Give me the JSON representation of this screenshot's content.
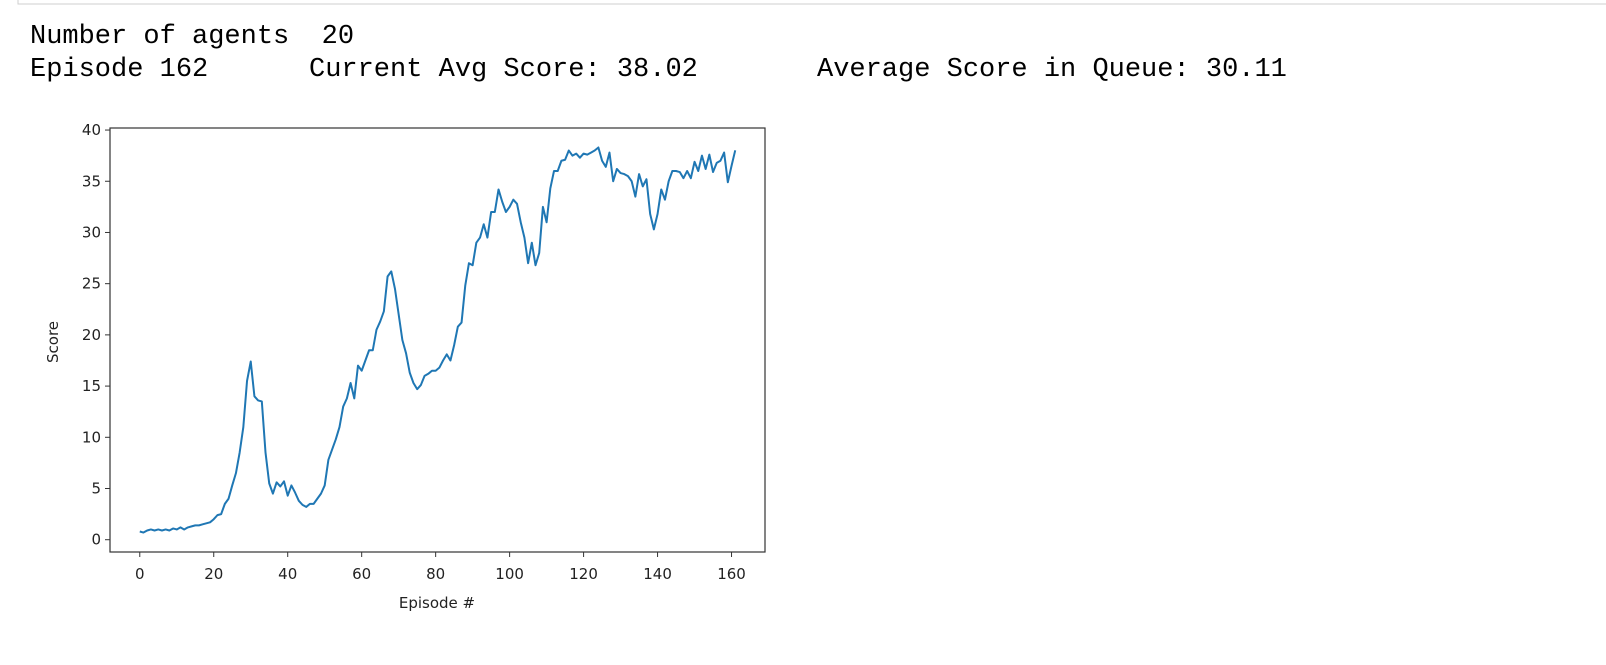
{
  "output": {
    "agents_line": "Number of agents  20",
    "episode_line": [
      "Episode 162",
      "Current Avg Score: 38.02",
      "Average Score in Queue: 30.11"
    ]
  },
  "chart_data": {
    "type": "line",
    "xlabel": "Episode #",
    "ylabel": "Score",
    "x": [
      0,
      1,
      2,
      3,
      4,
      5,
      6,
      7,
      8,
      9,
      10,
      11,
      12,
      13,
      14,
      15,
      16,
      17,
      18,
      19,
      20,
      21,
      22,
      23,
      24,
      25,
      26,
      27,
      28,
      29,
      30,
      31,
      32,
      33,
      34,
      35,
      36,
      37,
      38,
      39,
      40,
      41,
      42,
      43,
      44,
      45,
      46,
      47,
      48,
      49,
      50,
      51,
      52,
      53,
      54,
      55,
      56,
      57,
      58,
      59,
      60,
      61,
      62,
      63,
      64,
      65,
      66,
      67,
      68,
      69,
      70,
      71,
      72,
      73,
      74,
      75,
      76,
      77,
      78,
      79,
      80,
      81,
      82,
      83,
      84,
      85,
      86,
      87,
      88,
      89,
      90,
      91,
      92,
      93,
      94,
      95,
      96,
      97,
      98,
      99,
      100,
      101,
      102,
      103,
      104,
      105,
      106,
      107,
      108,
      109,
      110,
      111,
      112,
      113,
      114,
      115,
      116,
      117,
      118,
      119,
      120,
      121,
      122,
      123,
      124,
      125,
      126,
      127,
      128,
      129,
      130,
      131,
      132,
      133,
      134,
      135,
      136,
      137,
      138,
      139,
      140,
      141,
      142,
      143,
      144,
      145,
      146,
      147,
      148,
      149,
      150,
      151,
      152,
      153,
      154,
      155,
      156,
      157,
      158,
      159,
      160,
      161
    ],
    "series": [
      {
        "name": "Score",
        "color": "#1f77b4",
        "values": [
          0.8,
          0.7,
          0.9,
          1.0,
          0.9,
          1.0,
          0.9,
          1.0,
          0.9,
          1.1,
          1.0,
          1.2,
          1.0,
          1.2,
          1.3,
          1.4,
          1.4,
          1.5,
          1.6,
          1.7,
          2.0,
          2.4,
          2.5,
          3.5,
          4.0,
          5.3,
          6.5,
          8.5,
          11,
          15.5,
          17.4,
          14,
          13.6,
          13.5,
          8.5,
          5.5,
          4.5,
          5.6,
          5.2,
          5.7,
          4.3,
          5.3,
          4.6,
          3.8,
          3.4,
          3.2,
          3.5,
          3.5,
          4.0,
          4.5,
          5.3,
          7.8,
          8.8,
          9.8,
          11,
          13,
          13.8,
          15.3,
          13.8,
          17,
          16.5,
          17.5,
          18.5,
          18.5,
          20.5,
          21.3,
          22.3,
          25.7,
          26.2,
          24.5,
          22,
          19.5,
          18.2,
          16.3,
          15.3,
          14.7,
          15.1,
          16,
          16.2,
          16.5,
          16.5,
          16.8,
          17.5,
          18.1,
          17.5,
          19,
          20.8,
          21.2,
          24.8,
          27,
          26.8,
          29,
          29.5,
          30.8,
          29.5,
          32,
          32,
          34.2,
          33,
          32,
          32.5,
          33.2,
          32.8,
          31,
          29.5,
          27,
          29,
          26.8,
          28,
          32.5,
          31,
          34.3,
          36,
          36,
          37,
          37.1,
          38,
          37.5,
          37.7,
          37.3,
          37.7,
          37.6,
          37.8,
          38,
          38.3,
          37,
          36.4,
          37.8,
          35,
          36.2,
          35.8,
          35.7,
          35.5,
          35,
          33.5,
          35.7,
          34.5,
          35.2,
          31.8,
          30.3,
          31.8,
          34.2,
          33.2,
          35,
          36,
          36,
          35.9,
          35.3,
          36,
          35.3,
          36.9,
          36,
          37.5,
          36.2,
          37.6,
          35.9,
          36.8,
          37,
          37.8,
          34.9,
          36.5,
          38.02
        ]
      }
    ],
    "xlim": [
      -8.05,
      169.05
    ],
    "ylim": [
      -1.2,
      40.2
    ],
    "xticks": [
      0,
      20,
      40,
      60,
      80,
      100,
      120,
      140,
      160
    ],
    "yticks": [
      0,
      5,
      10,
      15,
      20,
      25,
      30,
      35,
      40
    ]
  }
}
